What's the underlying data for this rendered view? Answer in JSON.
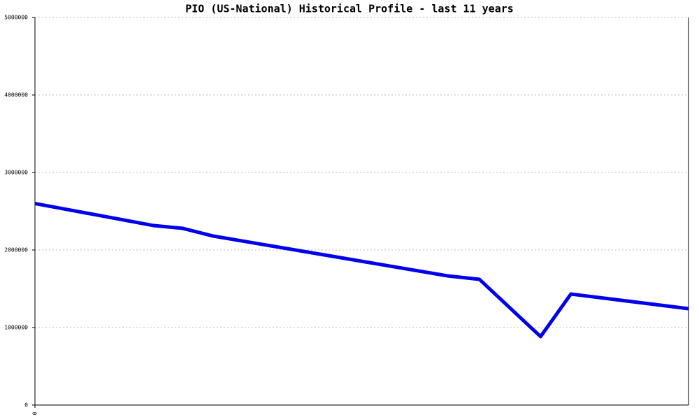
{
  "chart_data": {
    "type": "line",
    "title": "PIO (US-National) Historical Profile - last 11 years",
    "x": [
      0,
      2.0,
      2.49,
      3.0,
      6.94,
      7.48,
      8.51,
      9.02,
      11
    ],
    "values": [
      2600000,
      2315000,
      2279000,
      2180000,
      1667000,
      1622000,
      883000,
      1432000,
      1243000
    ],
    "color": "#0000ee",
    "xlim": [
      0,
      11
    ],
    "xticks": [
      0
    ],
    "ylim": [
      0,
      5000000
    ],
    "yticks": [
      0,
      1000000,
      2000000,
      3000000,
      4000000,
      5000000
    ],
    "grid": true
  }
}
